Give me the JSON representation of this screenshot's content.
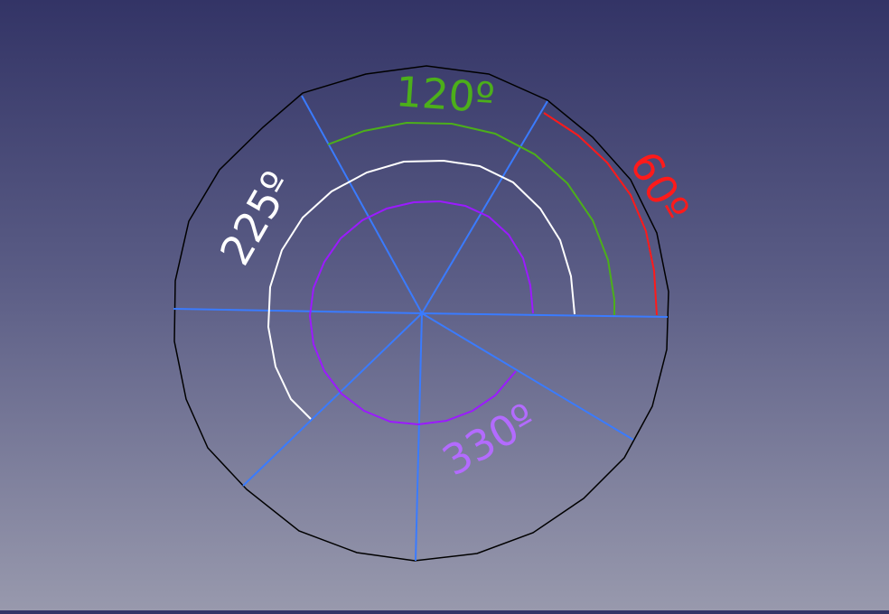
{
  "viewport": {
    "background_top": "#333466",
    "background_bottom": "#9899ad"
  },
  "arcs": [
    {
      "label": "60º",
      "angle_deg": 60,
      "color": "#ff1a1a"
    },
    {
      "label": "120º",
      "angle_deg": 120,
      "color": "#4caf1a"
    },
    {
      "label": "225º",
      "angle_deg": 225,
      "color": "#ffffff"
    },
    {
      "label": "330º",
      "angle_deg": 330,
      "color": "#9b1aff"
    }
  ],
  "colors": {
    "outline": "#000000",
    "spokes": "#3a7bff"
  }
}
